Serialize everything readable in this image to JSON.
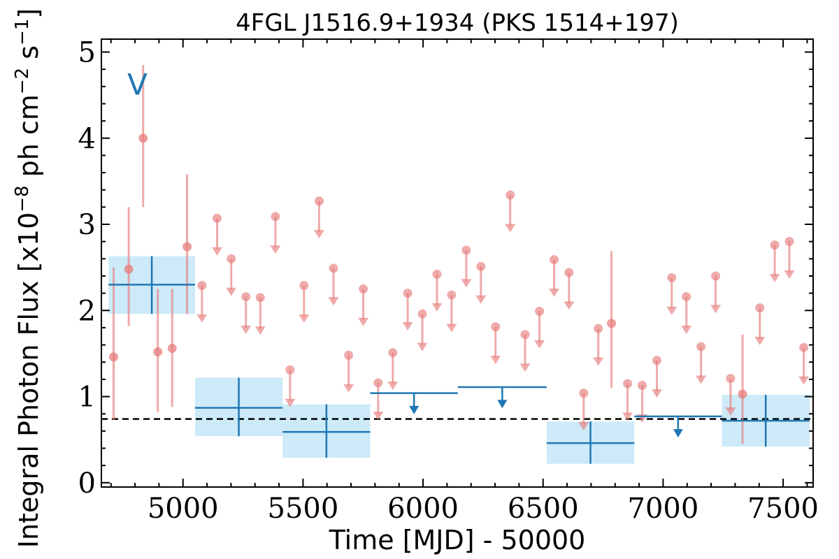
{
  "chart_data": {
    "type": "scatter",
    "title": "4FGL J1516.9+1934 (PKS 1514+197)",
    "xlabel": "Time [MJD] - 50000",
    "ylabel": "Integral Photon Flux [x10^-8 ph cm^-2 s^-1]",
    "ylabel_parts": [
      "Integral Photon Flux [x10",
      "−8",
      " ph cm",
      "−2",
      " s",
      "−1",
      "]"
    ],
    "xlim": [
      4660,
      7625
    ],
    "ylim": [
      -0.05,
      5.15
    ],
    "xticks": [
      5000,
      5500,
      6000,
      6500,
      7000,
      7500
    ],
    "yticks": [
      0,
      1,
      2,
      3,
      4,
      5
    ],
    "xtick_labels": [
      "5000",
      "5500",
      "6000",
      "6500",
      "7000",
      "7500"
    ],
    "ytick_labels": [
      "0",
      "1",
      "2",
      "3",
      "4",
      "5"
    ],
    "grid": false,
    "annotations": [
      {
        "text": "V",
        "x": 4810,
        "y": 4.62
      }
    ],
    "reference_line": {
      "y": 0.74,
      "style": "dashed",
      "color": "#000000"
    },
    "colors": {
      "detection": "#e77c7c",
      "upper_limit": "#e77c7c",
      "yearly": "#1f77b4",
      "yearly_band": "#cdeaf8"
    },
    "series": [
      {
        "kind": "detections",
        "points": [
          {
            "x": 4711,
            "y": 1.46,
            "lo": 0.73,
            "hi": 2.5
          },
          {
            "x": 4774,
            "y": 2.48,
            "lo": 1.82,
            "hi": 3.2
          },
          {
            "x": 4834,
            "y": 4.0,
            "lo": 3.2,
            "hi": 4.85
          },
          {
            "x": 4895,
            "y": 1.52,
            "lo": 0.82,
            "hi": 2.25
          },
          {
            "x": 4955,
            "y": 1.56,
            "lo": 0.88,
            "hi": 2.25
          },
          {
            "x": 5017,
            "y": 2.74,
            "lo": 1.96,
            "hi": 3.58
          },
          {
            "x": 6785,
            "y": 1.85,
            "lo": 1.1,
            "hi": 2.69
          },
          {
            "x": 7331,
            "y": 1.03,
            "lo": 0.45,
            "hi": 1.72
          }
        ]
      },
      {
        "kind": "upper_limits",
        "points": [
          {
            "x": 5079,
            "y": 2.29
          },
          {
            "x": 5142,
            "y": 3.07
          },
          {
            "x": 5201,
            "y": 2.6
          },
          {
            "x": 5262,
            "y": 2.16
          },
          {
            "x": 5322,
            "y": 2.15
          },
          {
            "x": 5385,
            "y": 3.09
          },
          {
            "x": 5446,
            "y": 1.31
          },
          {
            "x": 5504,
            "y": 2.29
          },
          {
            "x": 5567,
            "y": 3.27
          },
          {
            "x": 5627,
            "y": 2.49
          },
          {
            "x": 5690,
            "y": 1.48
          },
          {
            "x": 5751,
            "y": 2.25
          },
          {
            "x": 5813,
            "y": 1.16
          },
          {
            "x": 5874,
            "y": 1.51
          },
          {
            "x": 5936,
            "y": 2.2
          },
          {
            "x": 5997,
            "y": 1.96
          },
          {
            "x": 6058,
            "y": 2.42
          },
          {
            "x": 6119,
            "y": 2.18
          },
          {
            "x": 6180,
            "y": 2.7
          },
          {
            "x": 6241,
            "y": 2.51
          },
          {
            "x": 6302,
            "y": 1.81
          },
          {
            "x": 6363,
            "y": 3.34
          },
          {
            "x": 6425,
            "y": 1.72
          },
          {
            "x": 6485,
            "y": 1.99
          },
          {
            "x": 6546,
            "y": 2.59
          },
          {
            "x": 6608,
            "y": 2.44
          },
          {
            "x": 6669,
            "y": 1.04
          },
          {
            "x": 6730,
            "y": 1.79
          },
          {
            "x": 6852,
            "y": 1.15
          },
          {
            "x": 6913,
            "y": 1.13
          },
          {
            "x": 6974,
            "y": 1.42
          },
          {
            "x": 7036,
            "y": 2.38
          },
          {
            "x": 7097,
            "y": 2.16
          },
          {
            "x": 7158,
            "y": 1.58
          },
          {
            "x": 7219,
            "y": 2.4
          },
          {
            "x": 7281,
            "y": 1.21
          },
          {
            "x": 7403,
            "y": 2.03
          },
          {
            "x": 7465,
            "y": 2.76
          },
          {
            "x": 7526,
            "y": 2.8
          },
          {
            "x": 7586,
            "y": 1.57
          }
        ]
      },
      {
        "kind": "yearly_bins",
        "bins": [
          {
            "x0": 4690,
            "x1": 5050,
            "y": 2.3,
            "lo": 1.96,
            "hi": 2.63
          },
          {
            "x0": 5050,
            "x1": 5415,
            "y": 0.87,
            "lo": 0.54,
            "hi": 1.22
          },
          {
            "x0": 5415,
            "x1": 5780,
            "y": 0.59,
            "lo": 0.29,
            "hi": 0.91
          },
          {
            "x0": 6515,
            "x1": 6880,
            "y": 0.46,
            "lo": 0.22,
            "hi": 0.71
          },
          {
            "x0": 7245,
            "x1": 7610,
            "y": 0.72,
            "lo": 0.42,
            "hi": 1.02
          }
        ]
      },
      {
        "kind": "yearly_upper_limits",
        "bins": [
          {
            "x0": 5780,
            "x1": 6145,
            "y": 1.04
          },
          {
            "x0": 6145,
            "x1": 6515,
            "y": 1.11
          },
          {
            "x0": 6880,
            "x1": 7245,
            "y": 0.77
          }
        ]
      }
    ]
  }
}
